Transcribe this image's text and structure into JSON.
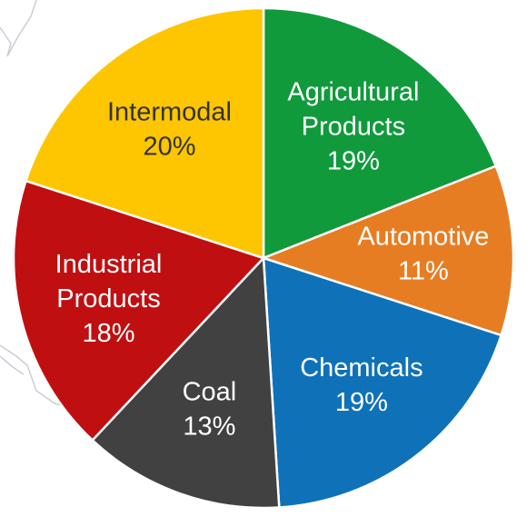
{
  "chart_data": {
    "type": "pie",
    "title": "",
    "slices": [
      {
        "category": "Agricultural Products",
        "label_lines": [
          "Agricultural",
          "Products"
        ],
        "pct_label": "19%",
        "value": 19,
        "color": "#109a3c",
        "text_color": "#ffffff"
      },
      {
        "category": "Automotive",
        "label_lines": [
          "Automotive"
        ],
        "pct_label": "11%",
        "value": 11,
        "color": "#e77d22",
        "text_color": "#ffffff"
      },
      {
        "category": "Chemicals",
        "label_lines": [
          "Chemicals"
        ],
        "pct_label": "19%",
        "value": 19,
        "color": "#0f72b9",
        "text_color": "#ffffff"
      },
      {
        "category": "Coal",
        "label_lines": [
          "Coal"
        ],
        "pct_label": "13%",
        "value": 13,
        "color": "#414141",
        "text_color": "#ffffff"
      },
      {
        "category": "Industrial Products",
        "label_lines": [
          "Industrial",
          "Products"
        ],
        "pct_label": "18%",
        "value": 18,
        "color": "#c00f11",
        "text_color": "#ffffff"
      },
      {
        "category": "Intermodal",
        "label_lines": [
          "Intermodal"
        ],
        "pct_label": "20%",
        "value": 20,
        "color": "#fdc600",
        "text_color": "#333333"
      }
    ],
    "start_angle_deg": 0,
    "direction": "clockwise",
    "legend": "none",
    "labels": "inside"
  }
}
